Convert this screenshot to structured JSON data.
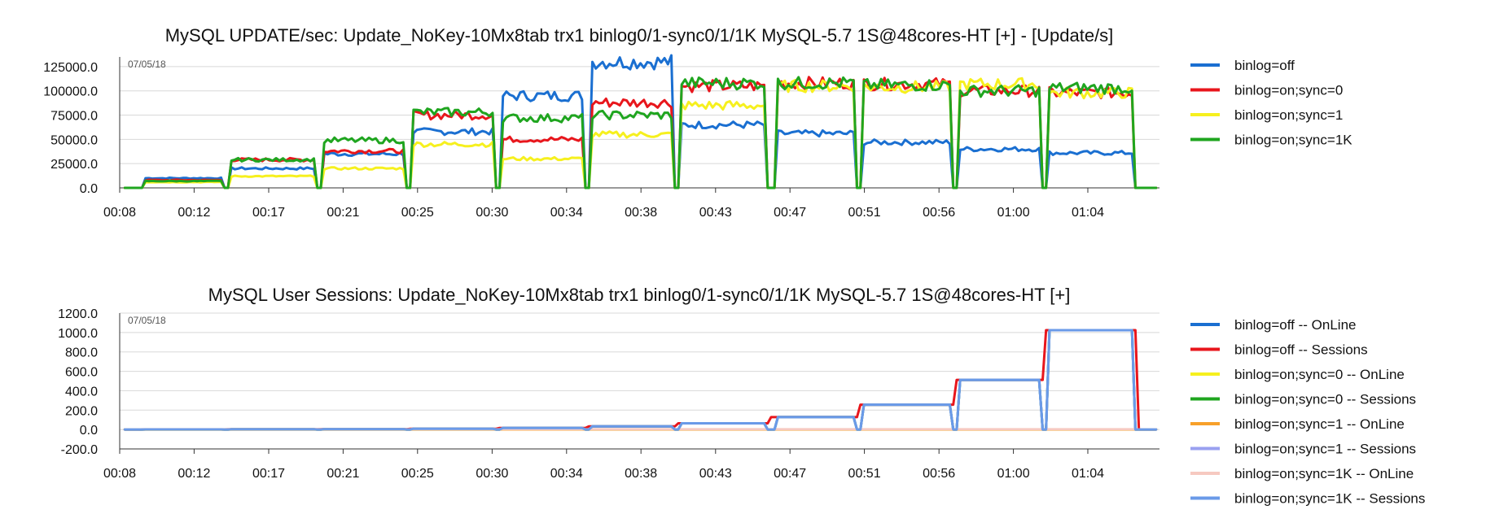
{
  "charts": [
    {
      "type": "line",
      "title": "MySQL UPDATE/sec: Update_NoKey-10Mx8tab trx1 binlog0/1-sync0/1/1K MySQL-5.7 1S@48cores-HT [+] - [Update/s]",
      "date_label": "07/05/18",
      "ylim": [
        0,
        135000
      ],
      "yticks": [
        0,
        25000,
        50000,
        75000,
        100000,
        125000
      ],
      "ytick_labels": [
        "0.0",
        "25000.0",
        "50000.0",
        "75000.0",
        "100000.0",
        "125000.0"
      ],
      "xlim": [
        8,
        68.5
      ],
      "xticks": [
        8,
        12.33,
        16.67,
        21,
        25.33,
        29.67,
        34,
        38.33,
        42.67,
        47,
        51.33,
        55.67,
        60,
        64.33
      ],
      "xtick_labels": [
        "00:08",
        "00:12",
        "00:17",
        "00:21",
        "00:25",
        "00:30",
        "00:34",
        "00:38",
        "00:43",
        "00:47",
        "00:51",
        "00:56",
        "01:00",
        "01:04"
      ],
      "series": [
        {
          "name": "binlog=off",
          "color": "#1a6fd1",
          "levels": [
            10000,
            20000,
            35000,
            58000,
            95000,
            130000,
            65000,
            56000,
            47000,
            40000,
            36000
          ]
        },
        {
          "name": "binlog=on;sync=0",
          "color": "#e8161c",
          "levels": [
            8000,
            29000,
            38000,
            75000,
            50000,
            88000,
            105000,
            108000,
            107000,
            100000,
            98000
          ]
        },
        {
          "name": "binlog=on;sync=1",
          "color": "#f6f01e",
          "levels": [
            6000,
            12000,
            20000,
            45000,
            30000,
            55000,
            85000,
            105000,
            104000,
            107000,
            98000
          ]
        },
        {
          "name": "binlog=on;sync=1K",
          "color": "#1fa51f",
          "levels": [
            7000,
            29000,
            49000,
            78000,
            72000,
            75000,
            108000,
            108000,
            106000,
            100000,
            103000
          ]
        }
      ]
    },
    {
      "type": "line",
      "title": "MySQL User Sessions: Update_NoKey-10Mx8tab trx1 binlog0/1-sync0/1/1K MySQL-5.7 1S@48cores-HT [+]",
      "date_label": "07/05/18",
      "ylim": [
        -200,
        1200
      ],
      "yticks": [
        -200,
        0,
        200,
        400,
        600,
        800,
        1000,
        1200
      ],
      "ytick_labels": [
        "-200.0",
        "0.0",
        "200.0",
        "400.0",
        "600.0",
        "800.0",
        "1000.0",
        "1200.0"
      ],
      "xlim": [
        8,
        68.5
      ],
      "xticks": [
        8,
        12.33,
        16.67,
        21,
        25.33,
        29.67,
        34,
        38.33,
        42.67,
        47,
        51.33,
        55.67,
        60,
        64.33
      ],
      "xtick_labels": [
        "00:08",
        "00:12",
        "00:17",
        "00:21",
        "00:25",
        "00:30",
        "00:34",
        "00:38",
        "00:43",
        "00:47",
        "00:51",
        "00:56",
        "01:00",
        "01:04"
      ],
      "series": [
        {
          "name": "binlog=off -- OnLine",
          "color": "#1a6fd1",
          "kind": "sessions"
        },
        {
          "name": "binlog=off -- Sessions",
          "color": "#e8161c",
          "kind": "sessions_red"
        },
        {
          "name": "binlog=on;sync=0 -- OnLine",
          "color": "#f6f01e",
          "kind": "zero"
        },
        {
          "name": "binlog=on;sync=0 -- Sessions",
          "color": "#1fa51f",
          "kind": "sessions_green"
        },
        {
          "name": "binlog=on;sync=1 -- OnLine",
          "color": "#f7a02a",
          "kind": "zero"
        },
        {
          "name": "binlog=on;sync=1 -- Sessions",
          "color": "#9aa0f0",
          "kind": "sessions"
        },
        {
          "name": "binlog=on;sync=1K -- OnLine",
          "color": "#f6c9c0",
          "kind": "online_flat"
        },
        {
          "name": "binlog=on;sync=1K -- Sessions",
          "color": "#6a9ae8",
          "kind": "sessions"
        }
      ],
      "session_levels": [
        1,
        2,
        4,
        8,
        16,
        32,
        64,
        128,
        256,
        512,
        1024
      ]
    }
  ]
}
